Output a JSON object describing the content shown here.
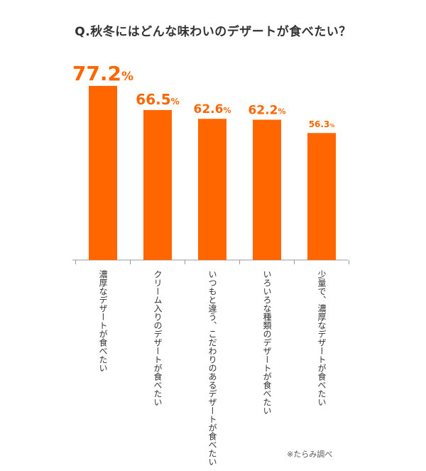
{
  "title": "Q.秋冬にはどんな味わいのデザートが食べたい？",
  "source_note": "※たらみ調べ",
  "colors": {
    "bar": "#ff6600",
    "value_label": "#ff6600",
    "axis": "#999999",
    "text": "#333333"
  },
  "chart_data": {
    "type": "bar",
    "title": "Q.秋冬にはどんな味わいのデザートが食べたい？",
    "categories": [
      "濃厚なデザートが食べたい",
      "クリーム入りのデザートが食べたい",
      "いつもと違う、こだわりのあるデザートが食べたい",
      "いろいろな種類のデザートが食べたい",
      "少量で、濃厚なデザートが食べたい"
    ],
    "values": [
      77.2,
      66.5,
      62.6,
      62.2,
      56.3
    ],
    "value_labels": [
      "77.2",
      "66.5",
      "62.6",
      "62.2",
      "56.3"
    ],
    "unit": "%",
    "xlabel": "",
    "ylabel": "",
    "ylim": [
      0,
      100
    ],
    "grid": false,
    "legend": "none"
  }
}
